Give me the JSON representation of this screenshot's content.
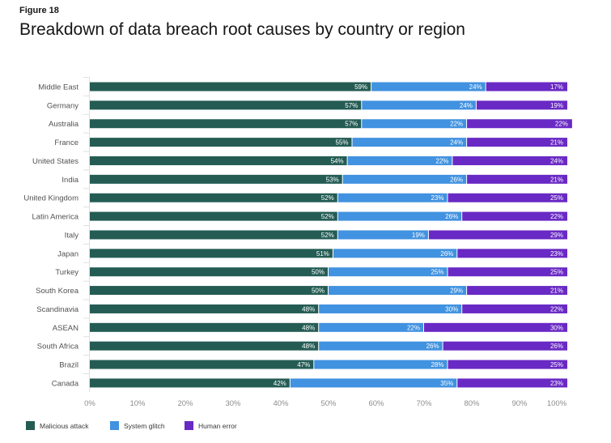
{
  "figure_label": "Figure 18",
  "chart_data": {
    "type": "bar",
    "orientation": "horizontal-stacked-100",
    "title": "Breakdown of data breach root causes by country or region",
    "categories": [
      "Middle East",
      "Germany",
      "Australia",
      "France",
      "United States",
      "India",
      "United Kingdom",
      "Latin America",
      "Italy",
      "Japan",
      "Turkey",
      "South Korea",
      "Scandinavia",
      "ASEAN",
      "South Africa",
      "Brazil",
      "Canada"
    ],
    "series": [
      {
        "name": "Malicious attack",
        "color": "#245c54",
        "values": [
          59,
          57,
          57,
          55,
          54,
          53,
          52,
          52,
          52,
          51,
          50,
          50,
          48,
          48,
          48,
          47,
          42
        ]
      },
      {
        "name": "System glitch",
        "color": "#4192e0",
        "values": [
          24,
          24,
          22,
          24,
          22,
          26,
          23,
          26,
          19,
          26,
          25,
          29,
          30,
          22,
          26,
          28,
          35
        ]
      },
      {
        "name": "Human error",
        "color": "#6929c4",
        "values": [
          17,
          19,
          22,
          21,
          24,
          21,
          25,
          22,
          29,
          23,
          25,
          21,
          22,
          30,
          26,
          25,
          23
        ]
      }
    ],
    "xticks": [
      "0%",
      "10%",
      "20%",
      "30%",
      "40%",
      "50%",
      "60%",
      "70%",
      "80%",
      "90%",
      "100%"
    ],
    "xlim": [
      0,
      100
    ],
    "legend": "bottom-left",
    "grid": false
  }
}
